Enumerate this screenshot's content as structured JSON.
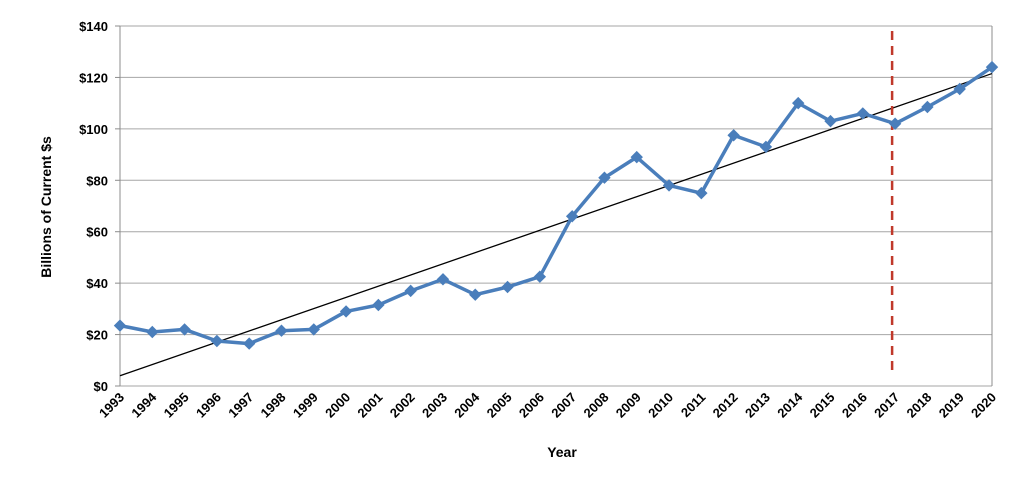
{
  "chart_data": {
    "type": "line",
    "xlabel": "Year",
    "ylabel": "Billions of Current $s",
    "ylim": [
      0,
      140
    ],
    "y_ticks": [
      0,
      20,
      40,
      60,
      80,
      100,
      120,
      140
    ],
    "y_tick_labels": [
      "$0",
      "$20",
      "$40",
      "$60",
      "$80",
      "$100",
      "$120",
      "$140"
    ],
    "categories": [
      "1993",
      "1994",
      "1995",
      "1996",
      "1997",
      "1998",
      "1999",
      "2000",
      "2001",
      "2002",
      "2003",
      "2004",
      "2005",
      "2006",
      "2007",
      "2008",
      "2009",
      "2010",
      "2011",
      "2012",
      "2013",
      "2014",
      "2015",
      "2016",
      "2017",
      "2018",
      "2019",
      "2020"
    ],
    "series": [
      {
        "values": [
          23.5,
          21,
          22,
          17.5,
          16.5,
          21.5,
          22,
          29,
          31.5,
          37,
          41.5,
          35.5,
          38.5,
          42.5,
          66,
          81,
          89,
          78,
          75,
          97.5,
          93,
          110,
          103,
          106,
          102,
          108.5,
          115.5,
          124
        ],
        "color": "#4a7ebb",
        "marker": "diamond"
      }
    ],
    "trendline": {
      "type": "linear",
      "start": [
        "1993",
        4
      ],
      "end": [
        "2020",
        121.5
      ],
      "color": "#000000"
    },
    "vertical_marker": {
      "at": "2017",
      "style": "dashed",
      "color": "#c0392b"
    },
    "grid": {
      "horizontal": true,
      "vertical": false
    },
    "legend": "none"
  }
}
